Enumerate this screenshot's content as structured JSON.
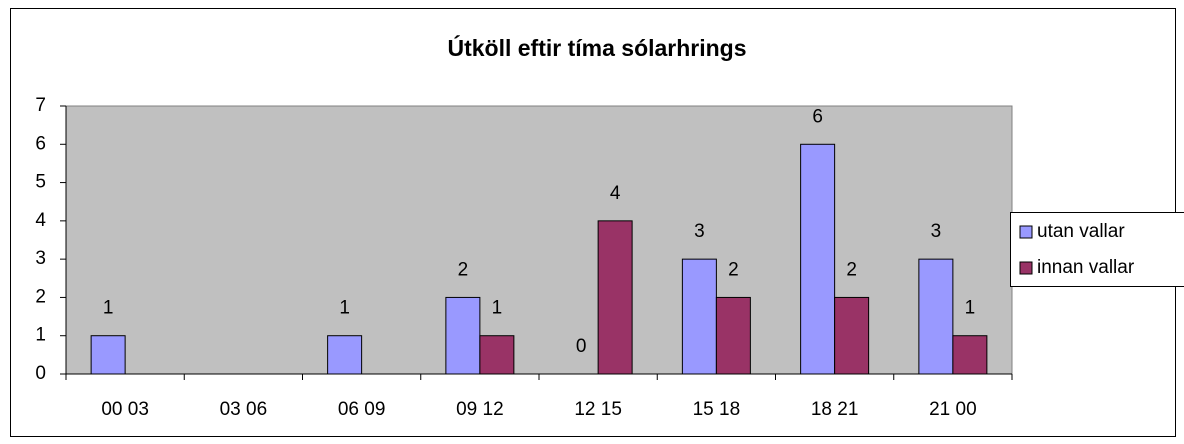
{
  "chart_data": {
    "type": "bar",
    "title": "Útköll eftir tíma sólarhrings",
    "categories": [
      "00 03",
      "03 06",
      "06 09",
      "09 12",
      "12 15",
      "15 18",
      "18 21",
      "21 00"
    ],
    "series": [
      {
        "name": "utan vallar",
        "color": "#9999ff",
        "values": [
          1,
          null,
          1,
          2,
          0,
          3,
          6,
          3
        ]
      },
      {
        "name": "innan vallar",
        "color": "#993366",
        "values": [
          null,
          null,
          null,
          1,
          4,
          2,
          2,
          1
        ]
      }
    ],
    "ylim": [
      0,
      7
    ],
    "yticks": [
      0,
      1,
      2,
      3,
      4,
      5,
      6,
      7
    ],
    "grid": false,
    "legend": "right",
    "plot_background": "#c0c0c0"
  }
}
